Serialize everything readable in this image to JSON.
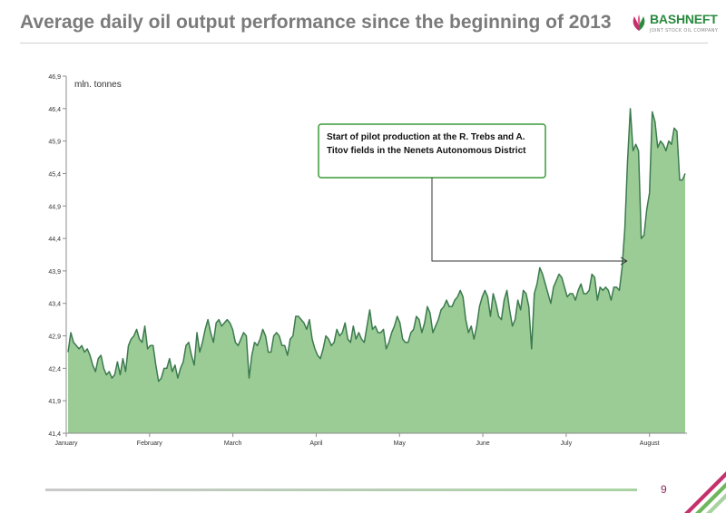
{
  "title": "Average daily oil output performance since the beginning of 2013",
  "brand": {
    "name": "BASHNEFT",
    "subtitle": "JOINT STOCK OIL COMPANY",
    "logo_icon": "bashneft-tulip-logo",
    "colors": {
      "green": "#2a8a3e",
      "magenta": "#c4306e"
    }
  },
  "page_number": "9",
  "colors": {
    "area_fill": "#9bcc96",
    "line": "#3c7a4f",
    "axis": "#8c8c8c",
    "annotation_border": "#3a9a3a"
  },
  "chart_data": {
    "type": "area",
    "unit_label": "mln. tonnes",
    "ylim": [
      41.4,
      46.9
    ],
    "yticks": [
      "41,4",
      "41,9",
      "42,4",
      "42,9",
      "43,4",
      "43,9",
      "44,4",
      "44,9",
      "45,4",
      "45,9",
      "46,4",
      "46,9"
    ],
    "xticks": [
      "January",
      "February",
      "March",
      "April",
      "May",
      "June",
      "July",
      "August"
    ],
    "grid": false,
    "annotation": {
      "text_lines": [
        "Start of pilot production at the R. Trebs and A.",
        "Titov fields in the Nenets Autonomous District"
      ],
      "points_to": "late July"
    },
    "series": [
      {
        "values": [
          42.65,
          42.95,
          42.8,
          42.75,
          42.7,
          42.75,
          42.65,
          42.7,
          42.6,
          42.45,
          42.35,
          42.55,
          42.6,
          42.4,
          42.3,
          42.35,
          42.25,
          42.3,
          42.5,
          42.3,
          42.55,
          42.35,
          42.75,
          42.85,
          42.9,
          43.0,
          42.85,
          42.8,
          43.05,
          42.7,
          42.75,
          42.75,
          42.45,
          42.2,
          42.25,
          42.4,
          42.4,
          42.55,
          42.35,
          42.45,
          42.25,
          42.4,
          42.5,
          42.75,
          42.8,
          42.6,
          42.45,
          42.95,
          42.65,
          42.8,
          43.0,
          43.15,
          42.95,
          42.8,
          43.1,
          43.15,
          43.05,
          43.1,
          43.15,
          43.1,
          43.0,
          42.8,
          42.75,
          42.85,
          42.95,
          42.9,
          42.25,
          42.6,
          42.8,
          42.75,
          42.85,
          43.0,
          42.9,
          42.65,
          42.65,
          42.9,
          42.95,
          42.9,
          42.75,
          42.75,
          42.6,
          42.85,
          42.9,
          43.2,
          43.2,
          43.15,
          43.1,
          43.0,
          43.15,
          42.85,
          42.7,
          42.6,
          42.55,
          42.7,
          42.9,
          42.85,
          42.75,
          42.8,
          43.0,
          42.9,
          42.95,
          43.1,
          42.85,
          42.8,
          43.05,
          42.85,
          42.95,
          42.85,
          42.8,
          43.05,
          43.3,
          43.0,
          43.05,
          42.95,
          42.95,
          43.0,
          42.7,
          42.8,
          42.95,
          43.05,
          43.2,
          43.1,
          42.85,
          42.8,
          42.8,
          42.95,
          43.0,
          43.2,
          43.15,
          42.95,
          43.1,
          43.35,
          43.25,
          42.95,
          43.05,
          43.15,
          43.3,
          43.35,
          43.45,
          43.35,
          43.35,
          43.45,
          43.5,
          43.6,
          43.5,
          43.15,
          42.95,
          43.05,
          42.85,
          43.05,
          43.35,
          43.5,
          43.6,
          43.5,
          43.2,
          43.55,
          43.4,
          43.2,
          43.15,
          43.45,
          43.6,
          43.3,
          43.05,
          43.15,
          43.45,
          43.3,
          43.6,
          43.55,
          43.35,
          42.7,
          43.55,
          43.7,
          43.95,
          43.85,
          43.7,
          43.55,
          43.4,
          43.65,
          43.75,
          43.85,
          43.8,
          43.65,
          43.5,
          43.55,
          43.55,
          43.45,
          43.6,
          43.7,
          43.55,
          43.55,
          43.6,
          43.85,
          43.8,
          43.45,
          43.65,
          43.6,
          43.65,
          43.6,
          43.45,
          43.65,
          43.65,
          43.6,
          43.95,
          44.55,
          45.6,
          46.4,
          45.75,
          45.85,
          45.75,
          44.4,
          44.45,
          44.85,
          45.1,
          46.35,
          46.2,
          45.8,
          45.9,
          45.85,
          45.75,
          45.9,
          45.85,
          46.1,
          46.05,
          45.3,
          45.3,
          45.4
        ]
      }
    ]
  }
}
